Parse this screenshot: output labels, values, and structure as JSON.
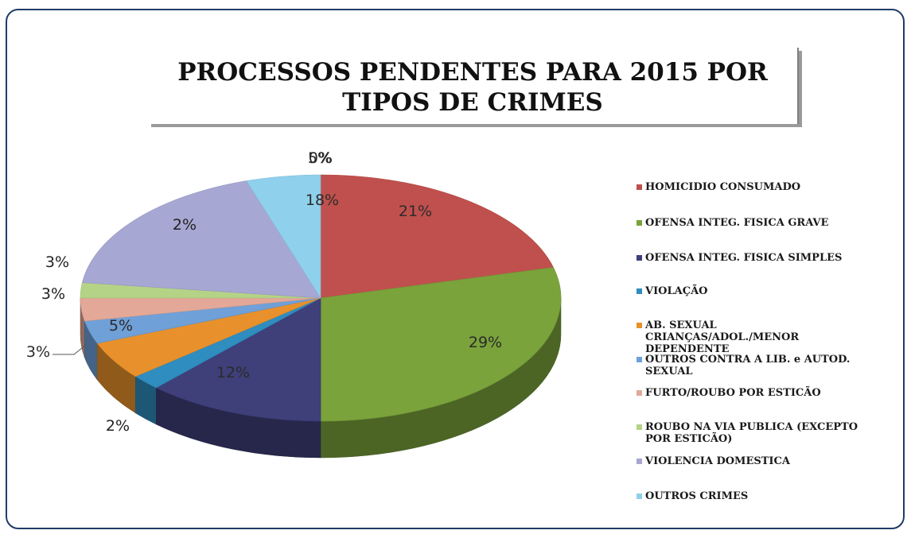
{
  "chart_data": {
    "type": "pie",
    "title": "PROCESSOS PENDENTES PARA 2015 POR TIPOS DE CRIMES",
    "legend_position": "right",
    "slices": [
      {
        "label": "HOMICIDIO CONSUMADO",
        "value": 21,
        "display": "21%",
        "color": "#c0504d"
      },
      {
        "label": "OFENSA INTEG. FISICA GRAVE",
        "value": 29,
        "display": "29%",
        "color": "#7aa33b"
      },
      {
        "label": "OFENSA INTEG. FISICA SIMPLES",
        "value": 12,
        "display": "12%",
        "color": "#3f3f7a"
      },
      {
        "label": "VIOLAÇÃO",
        "value": 2,
        "display": "2%",
        "color": "#2f8dbf"
      },
      {
        "label": "AB. SEXUAL CRIANÇAS/ADOL./MENOR DEPENDENTE",
        "value": 5,
        "display": "5%",
        "color": "#e8912c"
      },
      {
        "label": "OUTROS CONTRA A LIB. e AUTOD. SEXUAL",
        "value": 3,
        "display": "3%",
        "color": "#6fa0d8"
      },
      {
        "label": "FURTO/ROUBO POR ESTICÃO",
        "value": 3,
        "display": "3%",
        "color": "#e3a898"
      },
      {
        "label": "ROUBO NA VIA PUBLICA (EXCEPTO POR ESTICÃO)",
        "value": 2,
        "display": "2%",
        "color": "#b5d387"
      },
      {
        "label": "VIOLENCIA DOMESTICA",
        "value": 18,
        "display": "18%",
        "color": "#a7a7d3"
      },
      {
        "label": "OUTROS CRIMES",
        "value": 5,
        "display": "5%",
        "color": "#8fd0ec"
      }
    ],
    "extra_label": "0%"
  }
}
